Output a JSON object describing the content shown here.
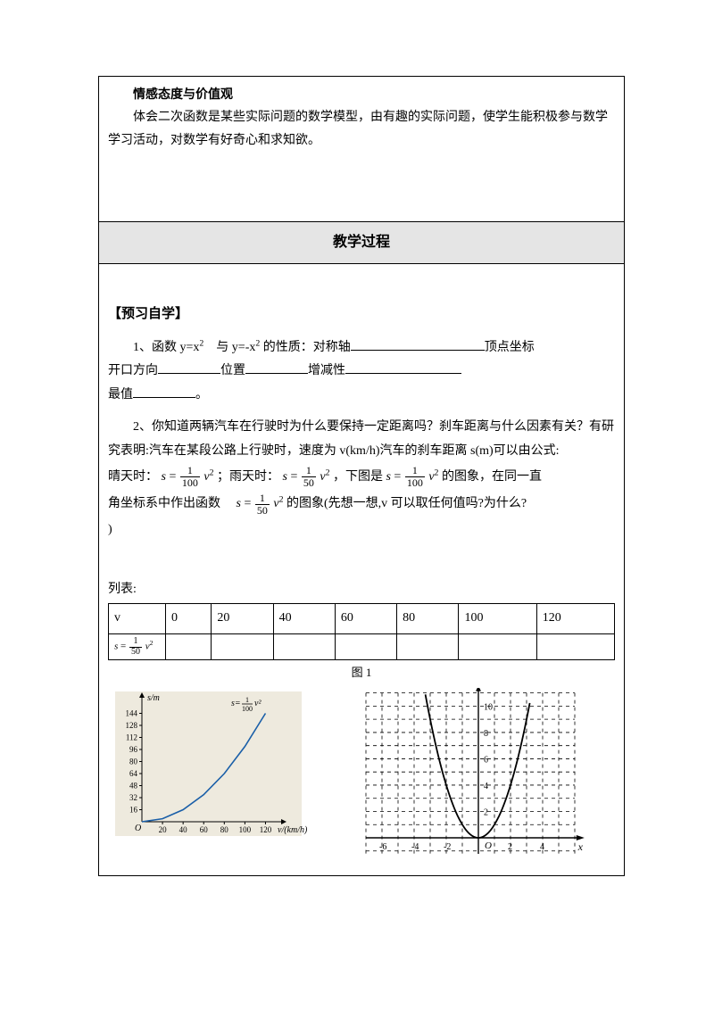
{
  "box1": {
    "title": "情感态度与价值观",
    "para": "体会二次函数是某些实际问题的数学模型，由有趣的实际问题，使学生能积极参与数学学习活动，对数学有好奇心和求知欲。"
  },
  "sectionHeader": "教学过程",
  "preview": {
    "heading": "【预习自学】",
    "q1": {
      "lead": "1、函数 y=x",
      "mid1": "　与 y=-x",
      "mid2": " 的性质：对称轴",
      "vertex": "顶点坐标",
      "line2a": "开口方向",
      "line2b": "位置",
      "line2c": "增减性",
      "line3a": "最值",
      "period": "。",
      "sup": "2"
    },
    "q2": {
      "p1": "2、你知道两辆汽车在行驶时为什么要保持一定距离吗？刹车距离与什么因素有关？有研究表明:汽车在某段公路上行驶时，速度为 v(km/h)汽车的刹车距离 s(m)可以由公式:",
      "sunny": "晴天时：",
      "rainy": "；雨天时：",
      "after1": "，下图是",
      "after2": " 的图象，在同一直",
      "line2a": "角坐标系中作出函数　",
      "line2b": " 的图象(先想一想,v 可以取任何值吗?为什么?",
      "line3": ")",
      "eqS": "s",
      "eqEq": " = ",
      "eqV2": " v",
      "eqSup": "2",
      "frac100n": "1",
      "frac100d": "100",
      "frac50n": "1",
      "frac50d": "50"
    },
    "tableLabel": "列表:",
    "table": {
      "h0": "v",
      "r1c0_s": "s",
      "r1c0_eq": " = ",
      "r1c0_n": "1",
      "r1c0_d": "50",
      "r1c0_v": " v",
      "r1c0_sup": "2",
      "cols": [
        "0",
        "20",
        "40",
        "60",
        "80",
        "100",
        "120"
      ]
    },
    "figLabel": "图 1",
    "chart1": {
      "bg": "#eeeade",
      "axisColor": "#000000",
      "curveColor": "#1a5fa8",
      "yLabel": "s/m",
      "xLabel": "v/(km/h)",
      "origin": "O",
      "eqPre": "s=",
      "eqNum": "1",
      "eqDen": "100",
      "eqPost": " v²",
      "yTicks": [
        "16",
        "32",
        "48",
        "64",
        "80",
        "96",
        "112",
        "128",
        "144"
      ],
      "xTicks": [
        "20",
        "40",
        "60",
        "80",
        "100",
        "120"
      ],
      "points": [
        [
          0,
          0
        ],
        [
          20,
          4
        ],
        [
          40,
          16
        ],
        [
          60,
          36
        ],
        [
          80,
          64
        ],
        [
          100,
          100
        ],
        [
          120,
          144
        ]
      ]
    },
    "chart2": {
      "gridColor": "#000000",
      "curveColor": "#000000",
      "origin": "O",
      "xVar": "x",
      "yTop": "10",
      "yMid1": "8",
      "yMid2": "6",
      "yMid3": "4",
      "yMid4": "2",
      "xNeg": [
        "-6",
        "-4",
        "-2"
      ],
      "xPos": [
        "2",
        "4"
      ]
    }
  }
}
